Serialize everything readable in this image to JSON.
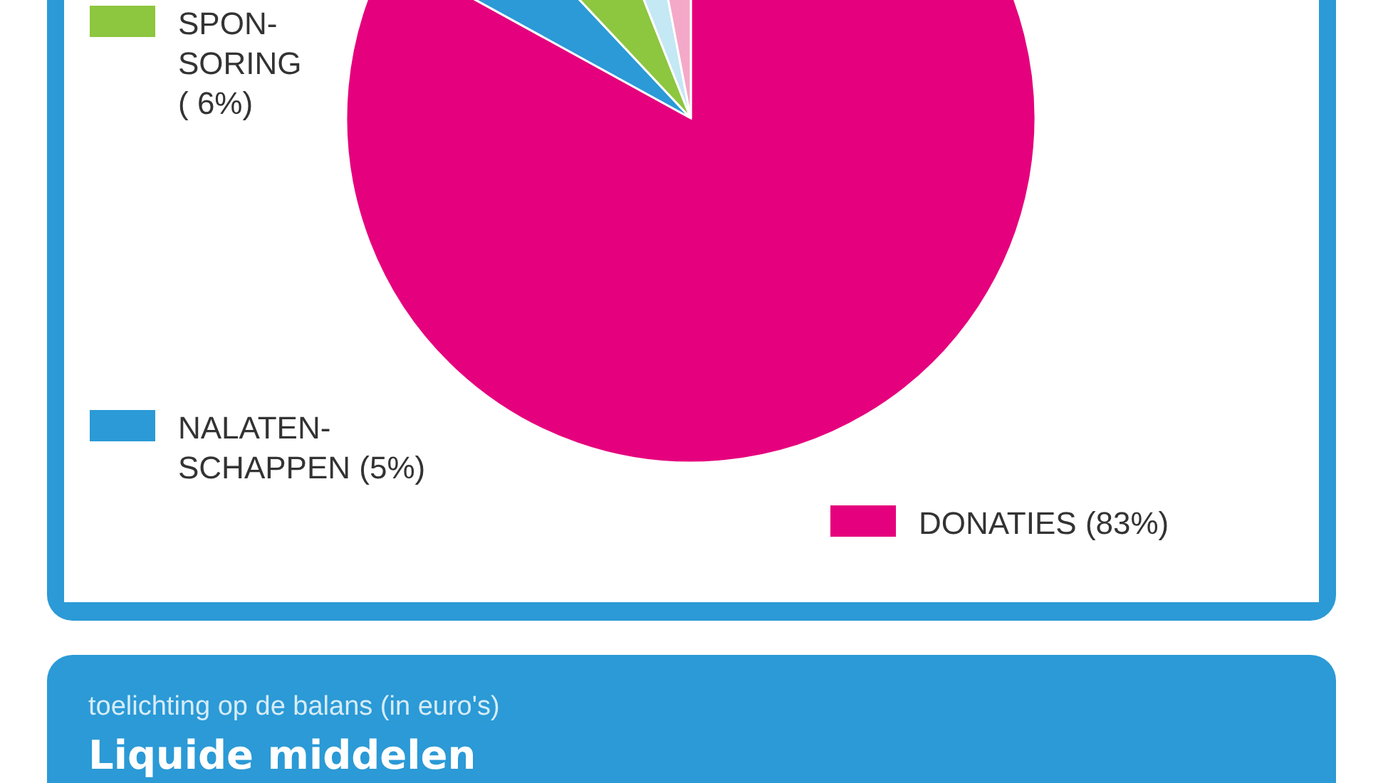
{
  "chart_data": {
    "type": "pie",
    "categories": [
      "DONATIES (83%)",
      "NALATEN-\nSCHAPPEN (5%)",
      "SPON-\nSORING\n( 6%)",
      null,
      null
    ],
    "values": [
      83,
      5,
      6,
      3,
      3
    ],
    "colors": [
      "#e5007d",
      "#2b9ad6",
      "#8dc63f",
      "#c4e8f4",
      "#f4a9c9"
    ],
    "legend": "left",
    "annotations": [
      "toelichting op de balans (in euro's)",
      "Liquide middelen"
    ]
  }
}
